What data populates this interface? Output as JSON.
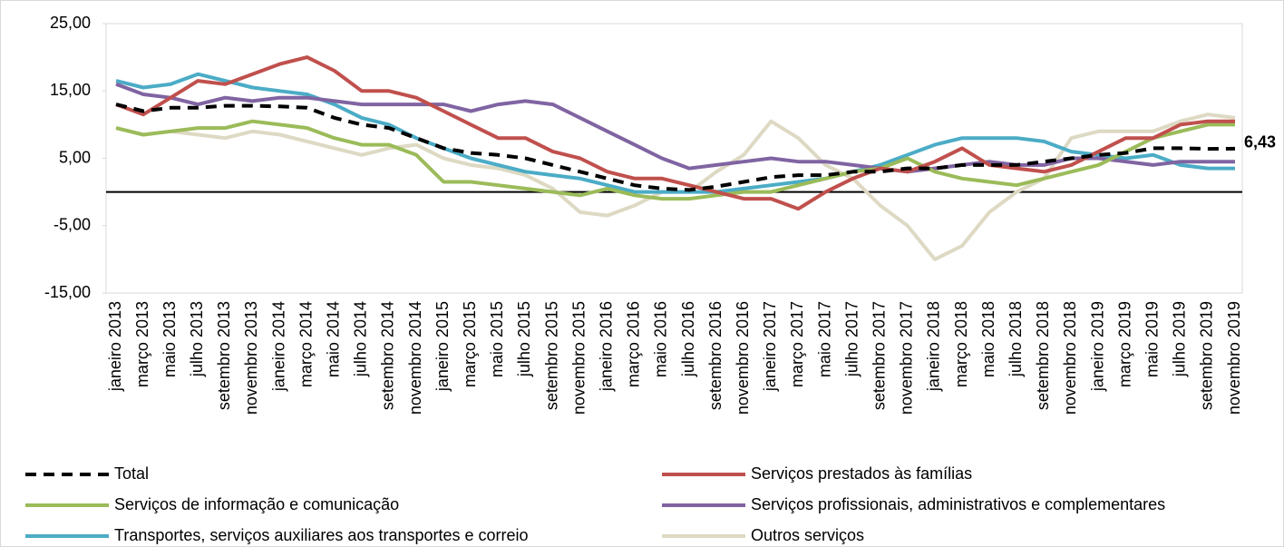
{
  "chart_data": {
    "type": "line",
    "categories": [
      "janeiro 2013",
      "março 2013",
      "maio 2013",
      "julho 2013",
      "setembro 2013",
      "novembro 2013",
      "janeiro 2014",
      "março 2014",
      "maio 2014",
      "julho 2014",
      "setembro 2014",
      "novembro 2014",
      "janeiro 2015",
      "março 2015",
      "maio 2015",
      "julho 2015",
      "setembro 2015",
      "novembro 2015",
      "janeiro 2016",
      "março 2016",
      "maio 2016",
      "julho 2016",
      "setembro 2016",
      "novembro 2016",
      "janeiro 2017",
      "março 2017",
      "maio 2017",
      "julho 2017",
      "setembro 2017",
      "novembro 2017",
      "janeiro 2018",
      "março 2018",
      "maio 2018",
      "julho 2018",
      "setembro 2018",
      "novembro 2018",
      "janeiro 2019",
      "março 2019",
      "maio 2019",
      "julho 2019",
      "setembro 2019",
      "novembro 2019"
    ],
    "series": [
      {
        "name": "Total",
        "color": "#000000",
        "style": "dashed",
        "values": [
          13,
          12,
          12.5,
          12.5,
          12.8,
          12.8,
          12.7,
          12.5,
          11,
          10,
          9.5,
          8,
          6.5,
          5.8,
          5.5,
          5,
          4,
          3,
          2,
          1,
          0.5,
          0.3,
          0.8,
          1.5,
          2.2,
          2.5,
          2.5,
          3,
          3,
          3.5,
          3.5,
          4,
          4,
          4,
          4.5,
          5,
          5.5,
          5.8,
          6.5,
          6.5,
          6.4,
          6.43
        ],
        "value_labels": [
          null,
          null,
          null,
          null,
          null,
          null,
          null,
          null,
          null,
          null,
          null,
          null,
          null,
          null,
          null,
          null,
          null,
          null,
          null,
          null,
          null,
          null,
          null,
          null,
          null,
          null,
          null,
          null,
          null,
          null,
          null,
          null,
          null,
          null,
          null,
          null,
          null,
          null,
          null,
          null,
          null,
          "6,43"
        ]
      },
      {
        "name": "Serviços prestados às famílias",
        "color": "#c0504d",
        "style": "solid",
        "values": [
          13,
          11.5,
          14,
          16.5,
          16,
          17.5,
          19,
          20,
          18,
          15,
          15,
          14,
          12,
          10,
          8,
          8,
          6,
          5,
          3,
          2,
          2,
          1,
          0,
          -1,
          -1,
          -2.5,
          0,
          2,
          3.5,
          3,
          4.5,
          6.5,
          4,
          3.5,
          3,
          4,
          6,
          8,
          8,
          10,
          10.5,
          10.5
        ]
      },
      {
        "name": "Serviços de informação e comunicação",
        "color": "#9bbb59",
        "style": "solid",
        "values": [
          9.5,
          8.5,
          9,
          9.5,
          9.5,
          10.5,
          10,
          9.5,
          8,
          7,
          7,
          5.5,
          1.5,
          1.5,
          1,
          0.5,
          0,
          -0.5,
          0.5,
          -0.5,
          -1,
          -1,
          -0.5,
          0,
          0,
          1,
          2,
          3,
          3.5,
          5,
          3,
          2,
          1.5,
          1,
          2,
          3,
          4,
          6,
          8,
          9,
          10,
          10
        ]
      },
      {
        "name": "Serviços profissionais, administrativos e complementares",
        "color": "#8064a2",
        "style": "solid",
        "values": [
          16,
          14.5,
          14,
          13,
          14,
          13.5,
          14,
          14,
          13.5,
          13,
          13,
          13,
          13,
          12,
          13,
          13.5,
          13,
          11,
          9,
          7,
          5,
          3.5,
          4,
          4.5,
          5,
          4.5,
          4.5,
          4,
          3.5,
          3,
          3.5,
          4,
          4.5,
          4,
          4,
          5,
          5,
          4.5,
          4,
          4.5,
          4.5,
          4.5
        ]
      },
      {
        "name": "Transportes, serviços auxiliares aos transportes e correio",
        "color": "#4bacc6",
        "style": "solid",
        "values": [
          16.5,
          15.5,
          16,
          17.5,
          16.5,
          15.5,
          15,
          14.5,
          13,
          11,
          10,
          8,
          6.5,
          5,
          4,
          3,
          2.5,
          2,
          1,
          0,
          0,
          0,
          0,
          0.5,
          1,
          1.5,
          2,
          3,
          4,
          5.5,
          7,
          8,
          8,
          8,
          7.5,
          6,
          5.5,
          5,
          5.5,
          4,
          3.5,
          3.5
        ]
      },
      {
        "name": "Outros serviços",
        "color": "#ddd9c3",
        "style": "solid",
        "values": [
          9.5,
          8.5,
          9,
          8.5,
          8,
          9,
          8.5,
          7.5,
          6.5,
          5.5,
          6.5,
          7,
          5,
          4,
          3.5,
          2.5,
          0.5,
          -3,
          -3.5,
          -2,
          0,
          0,
          3,
          5.5,
          10.5,
          8,
          4,
          2,
          -2,
          -5,
          -10,
          -8,
          -3,
          0,
          2,
          8,
          9,
          9,
          9,
          10.5,
          11.5,
          11
        ]
      }
    ],
    "ylim": [
      -15,
      25
    ],
    "yticks": [
      {
        "value": -15,
        "label": "-15,00"
      },
      {
        "value": -5,
        "label": "-5,00"
      },
      {
        "value": 5,
        "label": "5,00"
      },
      {
        "value": 15,
        "label": "15,00"
      },
      {
        "value": 25,
        "label": "25,00"
      }
    ],
    "zero_line": true
  }
}
